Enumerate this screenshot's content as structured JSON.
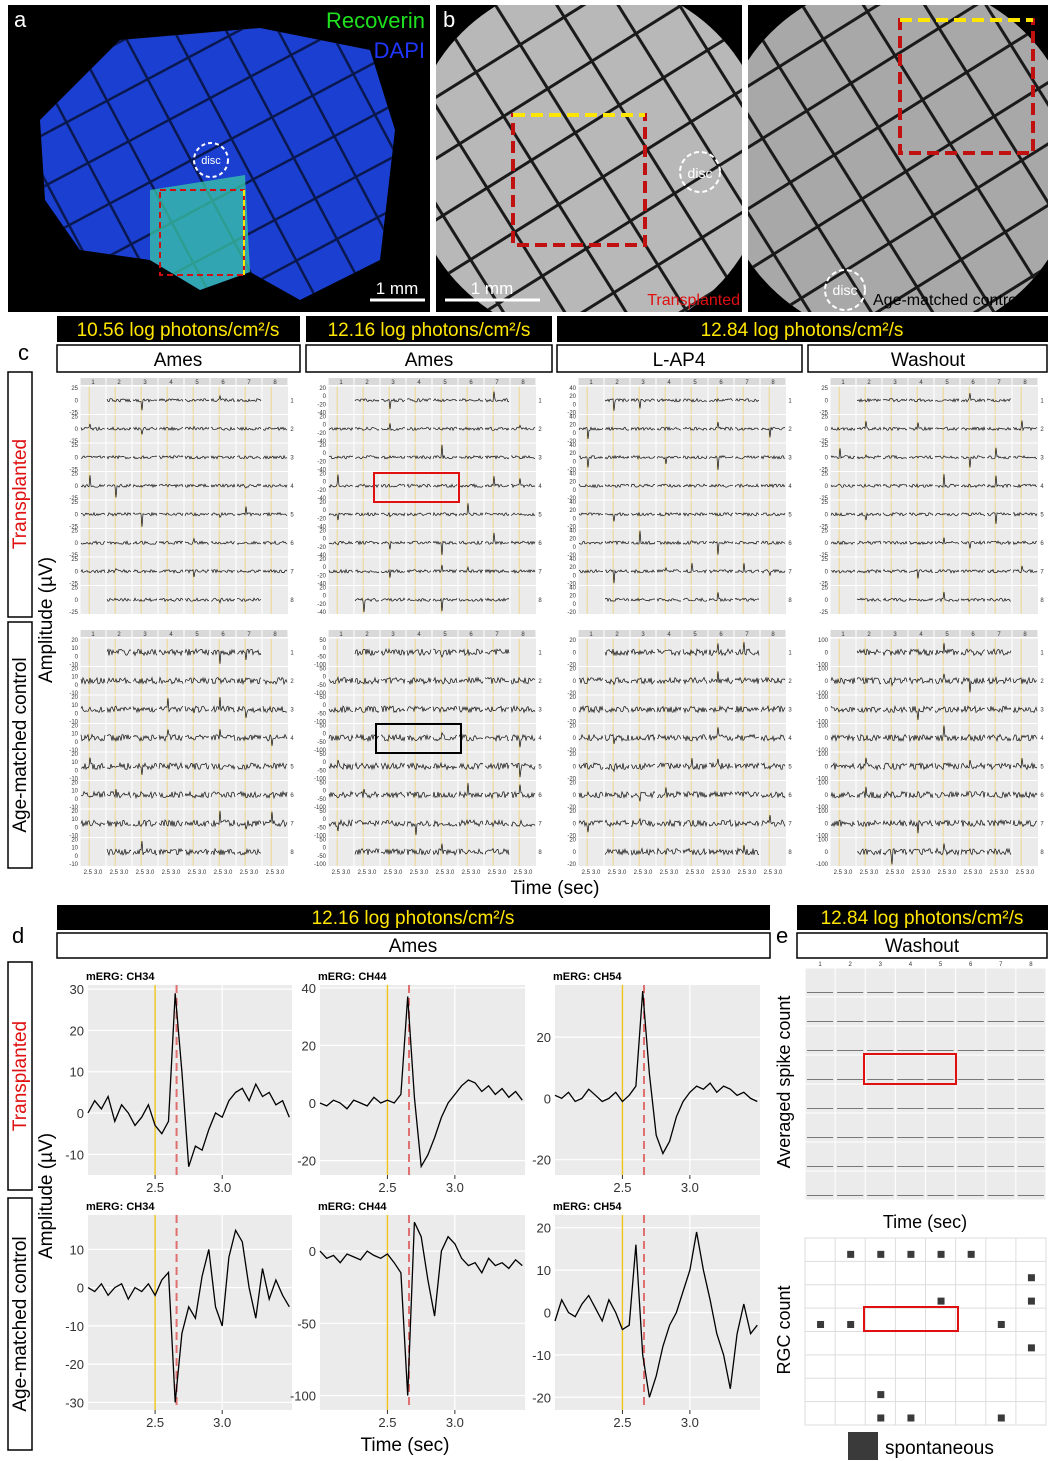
{
  "figure": {
    "panel_a": {
      "label": "a",
      "legend": [
        "Recoverin",
        "DAPI"
      ],
      "disc": "disc",
      "scale": "1 mm"
    },
    "panel_b": {
      "label": "b",
      "disc": "disc",
      "scale": "1 mm",
      "captions": [
        "Transplanted",
        "Age-matched control"
      ]
    },
    "panel_c": {
      "label": "c",
      "intensities": [
        "10.56 log photons/cm²/s",
        "12.16 log photons/cm²/s",
        "12.84 log photons/cm²/s"
      ],
      "conditions": [
        "Ames",
        "Ames",
        "L-AP4",
        "Washout"
      ],
      "rows": [
        "Transplanted",
        "Age-matched control"
      ],
      "y_label": "Amplitude (µV)",
      "x_label": "Time (sec)",
      "channel_numbers": [
        "1",
        "2",
        "3",
        "4",
        "5",
        "6",
        "7",
        "8"
      ],
      "time_ticks": [
        "2.5",
        "3.0"
      ],
      "block_yticks": [
        [
          "25",
          "0",
          "-25"
        ],
        [
          "20",
          "0",
          "-20",
          "-40"
        ],
        [
          "40",
          "20",
          "0",
          "-20"
        ],
        [
          "25",
          "0",
          "-25"
        ],
        [
          "20",
          "10",
          "0",
          "-10"
        ],
        [
          "50",
          "0",
          "-50",
          "-100"
        ],
        [
          "20",
          "0",
          "-20"
        ],
        [
          "100",
          "0",
          "-100"
        ]
      ]
    },
    "panel_d": {
      "label": "d",
      "intensity": "12.16 log photons/cm²/s",
      "condition": "Ames",
      "rows": [
        "Transplanted",
        "Age-matched control"
      ],
      "y_label": "Amplitude (µV)",
      "x_label": "Time (sec)"
    },
    "panel_e": {
      "label": "e",
      "intensity": "12.84 log photons/cm²/s",
      "condition": "Washout",
      "spike_y_label": "Averaged spike count",
      "x_label": "Time (sec)",
      "rgc_y_label": "RGC count",
      "legend": "spontaneous"
    }
  },
  "chart_data": [
    {
      "type": "line",
      "title": "mERG: CH34",
      "color": "#000000",
      "x": [
        2.0,
        2.05,
        2.1,
        2.15,
        2.2,
        2.25,
        2.3,
        2.35,
        2.4,
        2.45,
        2.5,
        2.55,
        2.6,
        2.65,
        2.7,
        2.75,
        2.8,
        2.85,
        2.9,
        2.95,
        3.0,
        3.05,
        3.1,
        3.15,
        3.2,
        3.25,
        3.3,
        3.35,
        3.4,
        3.45,
        3.5
      ],
      "values": [
        0,
        3,
        1,
        4,
        -2,
        2,
        0,
        -3,
        -1,
        2,
        -3,
        -5,
        -2,
        29,
        10,
        -13,
        -8,
        -9,
        -4,
        0,
        -1,
        3,
        5,
        6,
        3,
        7,
        4,
        5,
        2,
        3,
        -1
      ],
      "xlim": [
        2.0,
        3.52
      ],
      "ylim": [
        -15,
        31
      ],
      "xticks": [
        2.5,
        {
          "value": 3,
          "label": "3.0"
        }
      ],
      "yticks": [
        -10,
        0,
        10,
        20,
        30
      ],
      "reference_lines": [
        {
          "x": 2.5,
          "color": "#f0c419",
          "dash": false
        },
        {
          "x": 2.66,
          "color": "#e07070",
          "dash": true
        }
      ]
    },
    {
      "type": "line",
      "title": "mERG: CH44",
      "color": "#000000",
      "x": [
        2.0,
        2.05,
        2.1,
        2.15,
        2.2,
        2.25,
        2.3,
        2.35,
        2.4,
        2.45,
        2.5,
        2.55,
        2.6,
        2.65,
        2.7,
        2.75,
        2.8,
        2.85,
        2.9,
        2.95,
        3.0,
        3.05,
        3.1,
        3.15,
        3.2,
        3.25,
        3.3,
        3.35,
        3.4,
        3.45,
        3.5
      ],
      "values": [
        0,
        -1,
        1,
        0,
        -2,
        1,
        0,
        -1,
        2,
        0,
        1,
        0,
        3,
        37,
        2,
        -22,
        -18,
        -12,
        -5,
        0,
        3,
        6,
        8,
        7,
        4,
        6,
        3,
        5,
        2,
        4,
        1
      ],
      "xlim": [
        2.0,
        3.52
      ],
      "ylim": [
        -25,
        41
      ],
      "xticks": [
        2.5,
        {
          "value": 3,
          "label": "3.0"
        }
      ],
      "yticks": [
        -20,
        0,
        20,
        40
      ],
      "reference_lines": [
        {
          "x": 2.5,
          "color": "#f0c419",
          "dash": false
        },
        {
          "x": 2.66,
          "color": "#e07070",
          "dash": true
        }
      ]
    },
    {
      "type": "line",
      "title": "mERG: CH54",
      "color": "#000000",
      "x": [
        2.0,
        2.05,
        2.1,
        2.15,
        2.2,
        2.25,
        2.3,
        2.35,
        2.4,
        2.45,
        2.5,
        2.55,
        2.6,
        2.65,
        2.7,
        2.75,
        2.8,
        2.85,
        2.9,
        2.95,
        3.0,
        3.05,
        3.1,
        3.15,
        3.2,
        3.25,
        3.3,
        3.35,
        3.4,
        3.45,
        3.5
      ],
      "values": [
        1,
        0,
        2,
        -1,
        0,
        3,
        1,
        -1,
        0,
        2,
        -1,
        1,
        4,
        35,
        8,
        -12,
        -18,
        -14,
        -6,
        -1,
        2,
        4,
        3,
        5,
        2,
        4,
        3,
        1,
        2,
        0,
        -1
      ],
      "xlim": [
        2.0,
        3.52
      ],
      "ylim": [
        -25,
        37
      ],
      "xticks": [
        2.5,
        {
          "value": 3,
          "label": "3.0"
        }
      ],
      "yticks": [
        -20,
        0,
        20
      ],
      "reference_lines": [
        {
          "x": 2.5,
          "color": "#f0c419",
          "dash": false
        },
        {
          "x": 2.66,
          "color": "#e07070",
          "dash": true
        }
      ]
    },
    {
      "type": "line",
      "title": "mERG: CH34",
      "color": "#000000",
      "x": [
        2.0,
        2.05,
        2.1,
        2.15,
        2.2,
        2.25,
        2.3,
        2.35,
        2.4,
        2.45,
        2.5,
        2.55,
        2.6,
        2.65,
        2.7,
        2.75,
        2.8,
        2.85,
        2.9,
        2.95,
        3.0,
        3.05,
        3.1,
        3.15,
        3.2,
        3.25,
        3.3,
        3.35,
        3.4,
        3.45,
        3.5
      ],
      "values": [
        0,
        -1,
        1,
        -2,
        0,
        1,
        -3,
        0,
        -1,
        1,
        -2,
        2,
        4,
        -30,
        -12,
        -5,
        -8,
        3,
        10,
        -5,
        -10,
        8,
        15,
        12,
        0,
        -8,
        5,
        -3,
        2,
        -2,
        -5
      ],
      "xlim": [
        2.0,
        3.52
      ],
      "ylim": [
        -32,
        19
      ],
      "xticks": [
        2.5,
        {
          "value": 3,
          "label": "3.0"
        }
      ],
      "yticks": [
        -30,
        -20,
        -10,
        0,
        10
      ],
      "reference_lines": [
        {
          "x": 2.5,
          "color": "#f0c419",
          "dash": false
        },
        {
          "x": 2.66,
          "color": "#e07070",
          "dash": true
        }
      ]
    },
    {
      "type": "line",
      "title": "mERG: CH44",
      "color": "#000000",
      "x": [
        2.0,
        2.05,
        2.1,
        2.15,
        2.2,
        2.25,
        2.3,
        2.35,
        2.4,
        2.45,
        2.5,
        2.55,
        2.6,
        2.65,
        2.7,
        2.75,
        2.8,
        2.85,
        2.9,
        2.95,
        3.0,
        3.05,
        3.1,
        3.15,
        3.2,
        3.25,
        3.3,
        3.35,
        3.4,
        3.45,
        3.5
      ],
      "values": [
        0,
        -5,
        -3,
        -8,
        -2,
        -4,
        -6,
        0,
        -3,
        -5,
        -2,
        -8,
        -15,
        -100,
        20,
        10,
        -20,
        -45,
        0,
        10,
        5,
        -5,
        -10,
        -8,
        -15,
        -5,
        -10,
        -8,
        -12,
        -6,
        -10
      ],
      "xlim": [
        2.0,
        3.52
      ],
      "ylim": [
        -110,
        25
      ],
      "xticks": [
        2.5,
        {
          "value": 3,
          "label": "3.0"
        }
      ],
      "yticks": [
        -100,
        -50,
        0
      ],
      "reference_lines": [
        {
          "x": 2.5,
          "color": "#f0c419",
          "dash": false
        },
        {
          "x": 2.66,
          "color": "#e07070",
          "dash": true
        }
      ]
    },
    {
      "type": "line",
      "title": "mERG: CH54",
      "color": "#000000",
      "x": [
        2.0,
        2.05,
        2.1,
        2.15,
        2.2,
        2.25,
        2.3,
        2.35,
        2.4,
        2.45,
        2.5,
        2.55,
        2.6,
        2.65,
        2.7,
        2.75,
        2.8,
        2.85,
        2.9,
        2.95,
        3.0,
        3.05,
        3.1,
        3.15,
        3.2,
        3.25,
        3.3,
        3.35,
        3.4,
        3.45,
        3.5
      ],
      "values": [
        -2,
        3,
        0,
        -1,
        2,
        4,
        1,
        -2,
        3,
        0,
        -4,
        -3,
        16,
        -10,
        -20,
        -15,
        -8,
        -3,
        0,
        5,
        10,
        19,
        10,
        3,
        -5,
        -10,
        -18,
        -5,
        2,
        -5,
        -3
      ],
      "xlim": [
        2.0,
        3.52
      ],
      "ylim": [
        -23,
        23
      ],
      "xticks": [
        2.5,
        {
          "value": 3,
          "label": "3.0"
        }
      ],
      "yticks": [
        -20,
        -10,
        0,
        10,
        20
      ],
      "reference_lines": [
        {
          "x": 2.5,
          "color": "#f0c419",
          "dash": false
        },
        {
          "x": 2.66,
          "color": "#e07070",
          "dash": true
        }
      ]
    }
  ]
}
